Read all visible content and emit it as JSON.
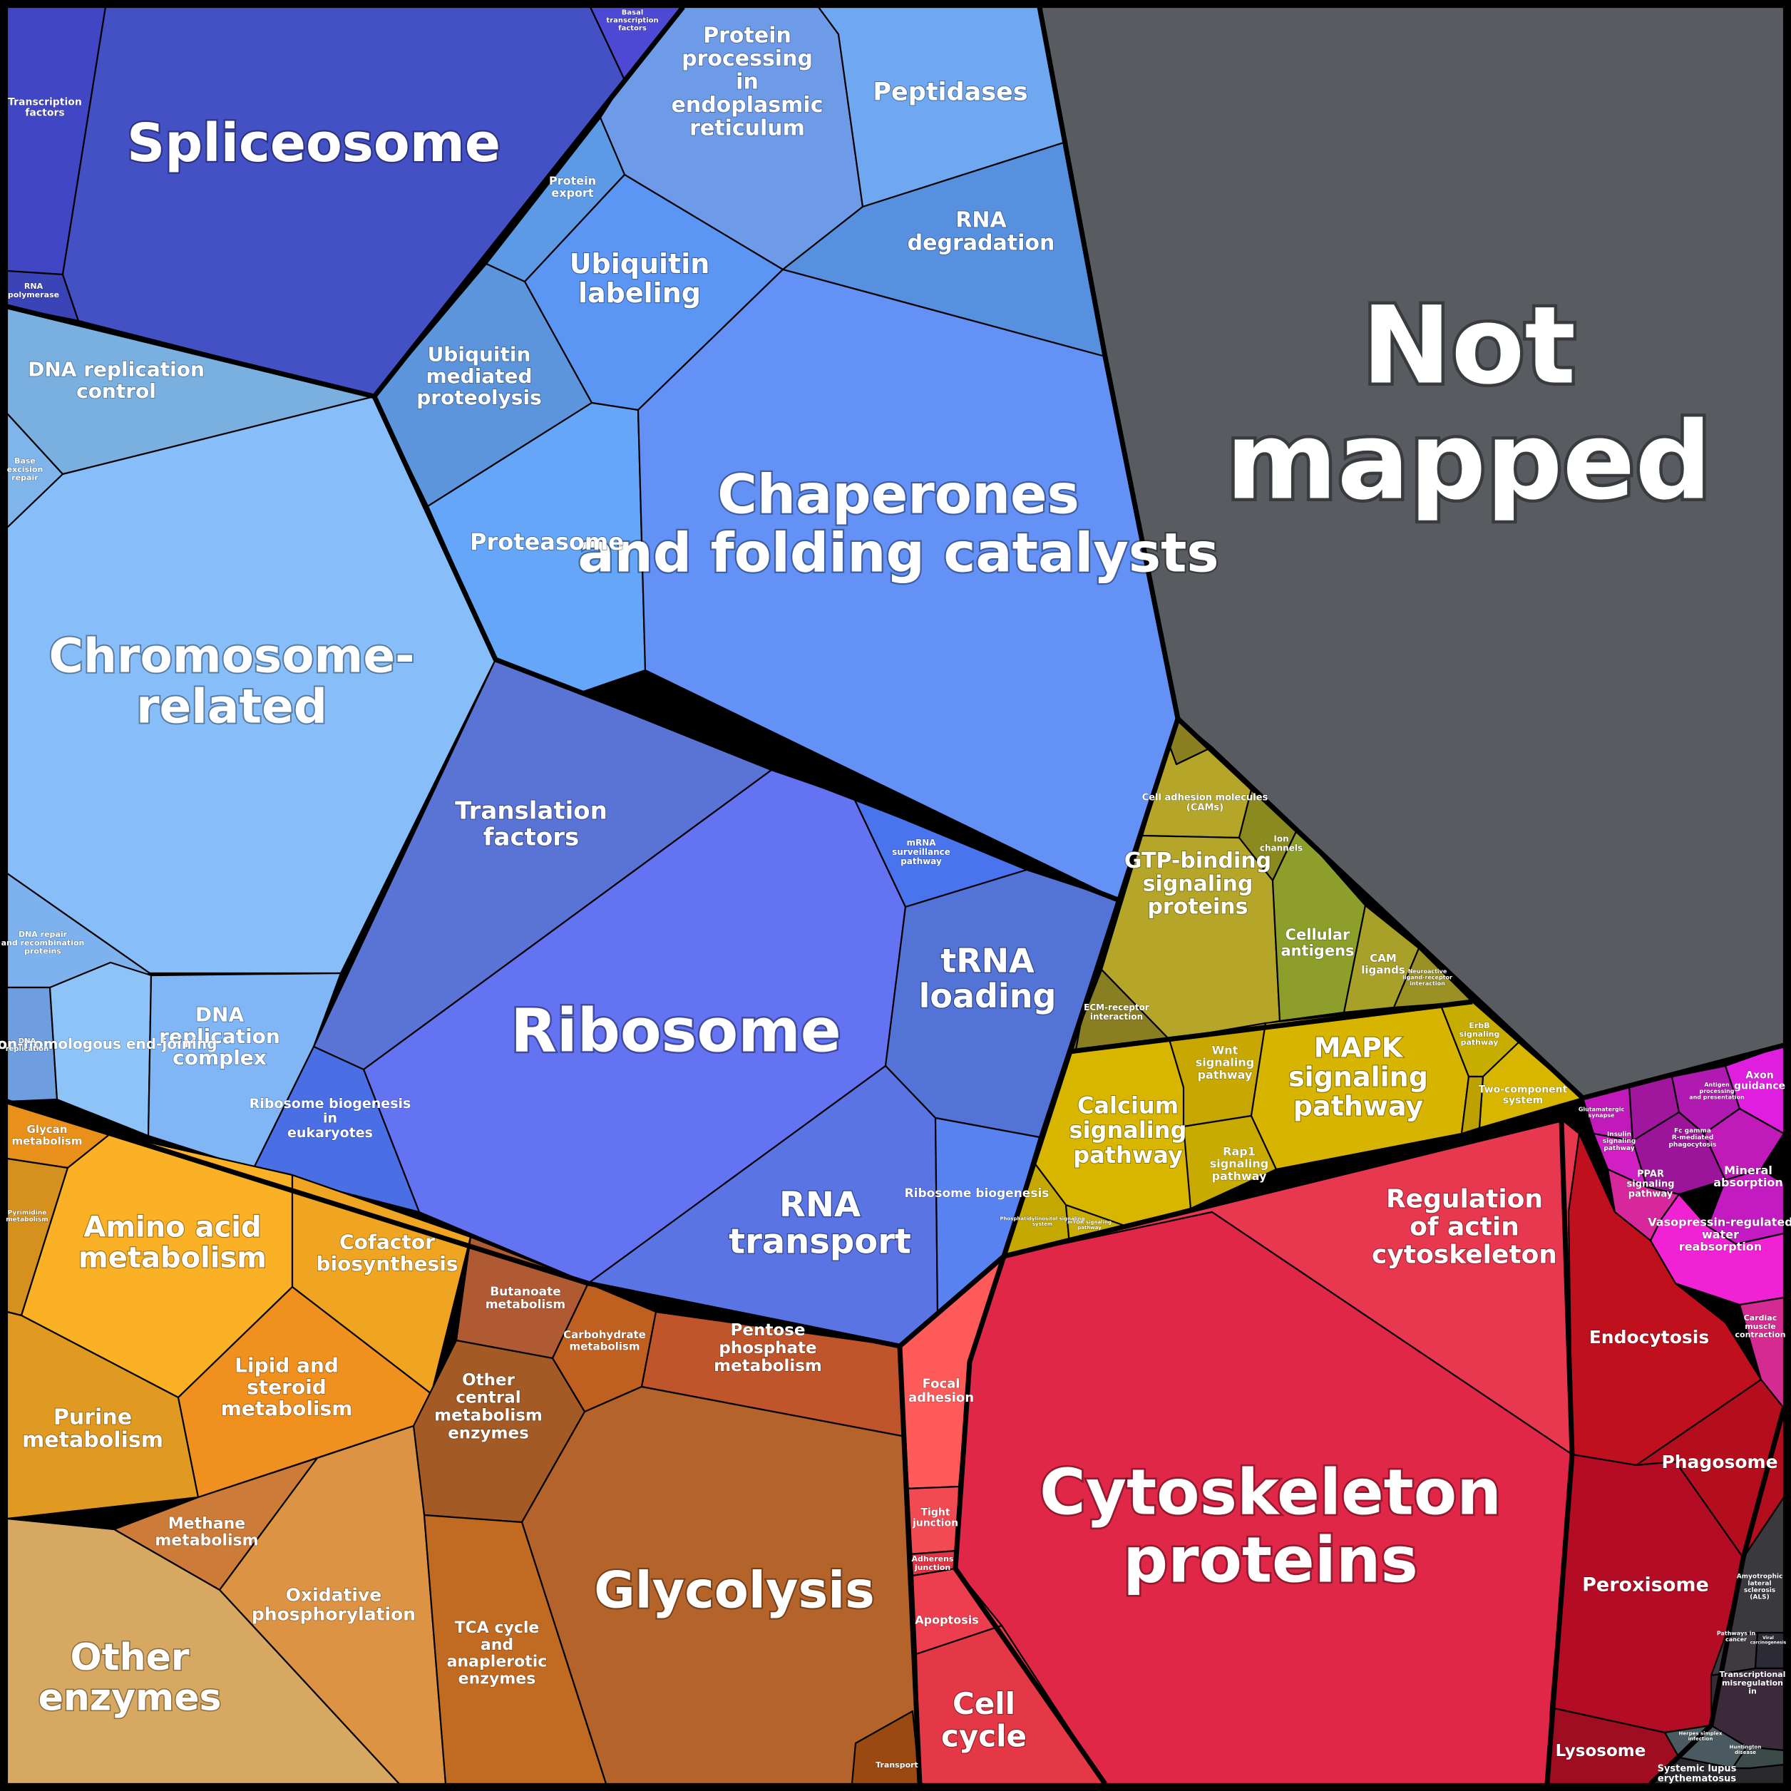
{
  "groups": {
    "not_mapped": "Not mapped",
    "spliceosome": "Spliceosome",
    "transcription_factors": "Transcription factors",
    "rna_polymerase": "RNA polymerase",
    "basal_tf": "Basal transcription factors",
    "protein_processing_er": "Protein processing in endoplasmic reticulum",
    "peptidases": "Peptidases",
    "protein_export": "Protein export",
    "ubiquitin_labeling": "Ubiquitin labeling",
    "rna_degradation": "RNA degradation",
    "ubiquitin_proteolysis": "Ubiquitin mediated proteolysis",
    "proteasome": "Proteasome",
    "chaperones": "Chaperones and folding catalysts",
    "dna_replication_control": "DNA replication control",
    "base_excision_repair": "Base excision repair",
    "chromosome_related": "Chromosome-related",
    "dna_repair": "DNA repair and recombination proteins",
    "dna_replication": "DNA replication",
    "nhej": "Non-homologous end-joining",
    "dna_replication_complex": "DNA replication complex",
    "translation_factors": "Translation factors",
    "ribosome": "Ribosome",
    "mrna_surveillance": "mRNA surveillance pathway",
    "trna_loading": "tRNA loading",
    "ribosome_biogenesis_euk": "Ribosome biogenesis in eukaryotes",
    "rna_transport": "RNA transport",
    "ribosome_biogenesis": "Ribosome biogenesis",
    "cell_adhesion_molecules": "Cell adhesion molecules (CAMs)",
    "ion_channels": "Ion channels",
    "gtp_binding": "GTP-binding signaling proteins",
    "cellular_antigens": "Cellular antigens",
    "cam_ligands": "CAM ligands",
    "neuroactive": "Neuroactive ligand-receptor interaction",
    "ecm_receptor": "ECM-receptor interaction",
    "wnt": "Wnt signaling pathway",
    "erbb": "ErbB signaling pathway",
    "mapk": "MAPK signaling pathway",
    "two_component": "Two-component system",
    "calcium": "Calcium signaling pathway",
    "rap1": "Rap1 signaling pathway",
    "phosphatidylinositol": "Phosphatidylinositol signaling system",
    "mtor": "mTOR signaling pathway",
    "axon_guidance": "Axon guidance",
    "glutamatergic": "Glutamatergic synapse",
    "insulin": "Insulin signaling pathway",
    "antigen_processing": "Antigen processing and presentation",
    "fc_gamma": "Fc gamma R-mediated phagocytosis",
    "mineral_absorption": "Mineral absorption",
    "ppar": "PPAR signaling pathway",
    "vasopressin": "Vasopressin-regulated water reabsorption",
    "cardiac": "Cardiac muscle contraction",
    "regulation_actin": "Regulation of actin cytoskeleton",
    "endocytosis": "Endocytosis",
    "phagosome": "Phagosome",
    "peroxisome": "Peroxisome",
    "lysosome": "Lysosome",
    "cytoskeleton_proteins": "Cytoskeleton proteins",
    "focal_adhesion": "Focal adhesion",
    "tight_junction": "Tight junction",
    "adherens_junction": "Adherens junction",
    "apoptosis": "Apoptosis",
    "cell_cycle": "Cell cycle",
    "als": "Amyotrophic lateral sclerosis (ALS)",
    "pathways_cancer": "Pathways in cancer",
    "viral_carcinogenesis": "Viral carcinogenesis",
    "transcriptional_misregulation": "Transcriptional misregulation in cancer",
    "herpes": "Herpes simplex infection",
    "huntington": "Huntington disease",
    "sle": "Systemic lupus erythematosus",
    "glycan_metabolism": "Glycan metabolism",
    "pyrimidine": "Pyrimidine metabolism",
    "amino_acid": "Amino acid metabolism",
    "cofactor": "Cofactor biosynthesis",
    "butanoate": "Butanoate metabolism",
    "carbohydrate": "Carbohydrate metabolism",
    "pentose": "Pentose phosphate metabolism",
    "purine": "Purine metabolism",
    "lipid": "Lipid and steroid metabolism",
    "other_central": "Other central metabolism enzymes",
    "methane": "Methane metabolism",
    "oxidative": "Oxidative phosphorylation",
    "glycolysis": "Glycolysis",
    "other_enzymes": "Other enzymes",
    "tca": "TCA cycle and anaplerotic enzymes",
    "transport": "Transport"
  },
  "colors": {
    "not_mapped": "#585c60",
    "spliceosome": "#4451c5",
    "er": "#6e9be8",
    "peptidases": "#6fa8f0",
    "chaperones": "#6391f6",
    "chromosome": "#87bdf8",
    "ribosome": "#6473f2",
    "translation": "#5a74d6",
    "signaling_olive": "#b5a629",
    "signaling_yellow": "#d8b600",
    "magenta": "#d81ed8",
    "crimson": "#e02747",
    "dark_red": "#b40c24",
    "orange": "#f8a323",
    "brown": "#b4632a",
    "tan": "#d6a862"
  }
}
